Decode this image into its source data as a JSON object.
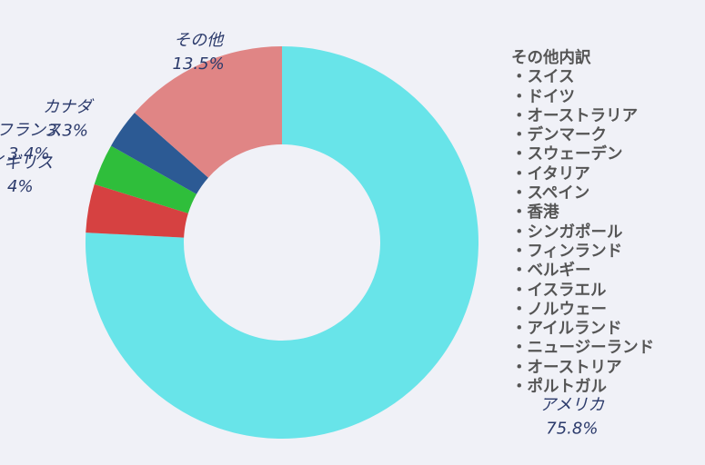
{
  "chart_data": {
    "type": "pie",
    "donut": true,
    "categories": [
      "アメリカ",
      "イギリス",
      "フランス",
      "カナダ",
      "その他"
    ],
    "values": [
      75.8,
      4,
      3.4,
      3.3,
      13.5
    ],
    "value_labels": [
      "75.8%",
      "4%",
      "3.4%",
      "3.3%",
      "13.5%"
    ],
    "colors": [
      "#68e4e9",
      "#d64141",
      "#2fbe3b",
      "#2c5a94",
      "#e08585"
    ],
    "start_angle": "top",
    "direction": "clockwise",
    "legend": "none"
  },
  "breakdown": {
    "title": "その他内訳",
    "items": [
      "スイス",
      "ドイツ",
      "オーストラリア",
      "デンマーク",
      "スウェーデン",
      "イタリア",
      "スペイン",
      "香港",
      "シンガポール",
      "フィンランド",
      "ベルギー",
      "イスラエル",
      "ノルウェー",
      "アイルランド",
      "ニュージーランド",
      "オーストリア",
      "ポルトガル"
    ]
  }
}
